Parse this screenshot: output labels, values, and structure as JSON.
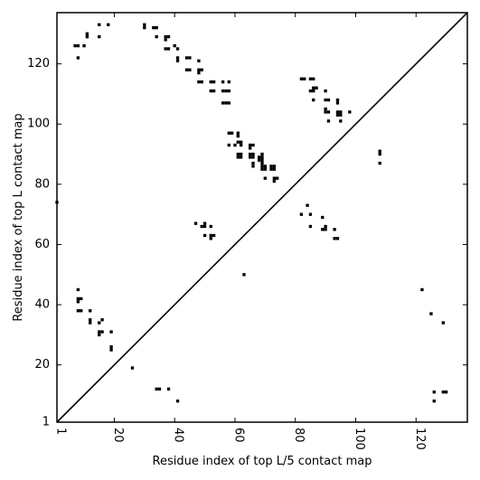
{
  "chart_data": {
    "type": "scatter",
    "xlabel": "Residue index of top L/5 contact map",
    "ylabel": "Residue index of top L contact map",
    "xlim": [
      1,
      137
    ],
    "ylim": [
      1,
      137
    ],
    "xticks": [
      1,
      20,
      40,
      60,
      80,
      100,
      120
    ],
    "yticks": [
      1,
      20,
      40,
      60,
      80,
      100,
      120
    ],
    "grid": false,
    "diagonal_line": true,
    "marker": "square",
    "colors": {
      "points": "#000000",
      "frame": "#000000",
      "background": "#ffffff"
    },
    "series": [
      {
        "name": "",
        "points": [
          [
            1,
            74
          ],
          [
            7,
            126
          ],
          [
            8,
            126
          ],
          [
            8,
            122
          ],
          [
            10,
            126
          ],
          [
            11,
            130
          ],
          [
            11,
            129
          ],
          [
            15,
            133
          ],
          [
            15,
            129
          ],
          [
            18,
            133
          ],
          [
            30,
            133
          ],
          [
            30,
            132
          ],
          [
            33,
            132
          ],
          [
            34,
            132
          ],
          [
            34,
            129
          ],
          [
            37,
            129
          ],
          [
            38,
            129
          ],
          [
            37,
            128
          ],
          [
            37,
            125
          ],
          [
            38,
            125
          ],
          [
            40,
            126
          ],
          [
            41,
            125
          ],
          [
            41,
            122
          ],
          [
            41,
            121
          ],
          [
            44,
            122
          ],
          [
            45,
            122
          ],
          [
            44,
            118
          ],
          [
            45,
            118
          ],
          [
            48,
            121
          ],
          [
            48,
            118
          ],
          [
            49,
            118
          ],
          [
            48,
            117
          ],
          [
            48,
            114
          ],
          [
            49,
            114
          ],
          [
            52,
            114
          ],
          [
            53,
            114
          ],
          [
            52,
            111
          ],
          [
            53,
            111
          ],
          [
            56,
            114
          ],
          [
            56,
            111
          ],
          [
            57,
            111
          ],
          [
            58,
            111
          ],
          [
            58,
            114
          ],
          [
            56,
            107
          ],
          [
            57,
            107
          ],
          [
            58,
            107
          ],
          [
            58,
            97
          ],
          [
            59,
            97
          ],
          [
            61,
            97
          ],
          [
            61,
            96
          ],
          [
            58,
            93
          ],
          [
            60,
            93
          ],
          [
            61,
            94
          ],
          [
            62,
            94
          ],
          [
            62,
            93
          ],
          [
            61,
            90
          ],
          [
            62,
            90
          ],
          [
            61,
            89
          ],
          [
            62,
            89
          ],
          [
            65,
            93
          ],
          [
            66,
            93
          ],
          [
            65,
            92
          ],
          [
            65,
            90
          ],
          [
            66,
            90
          ],
          [
            65,
            89
          ],
          [
            66,
            89
          ],
          [
            68,
            89
          ],
          [
            69,
            89
          ],
          [
            69,
            90
          ],
          [
            68,
            88
          ],
          [
            69,
            88
          ],
          [
            69,
            87
          ],
          [
            66,
            87
          ],
          [
            66,
            86
          ],
          [
            69,
            86
          ],
          [
            70,
            86
          ],
          [
            69,
            85
          ],
          [
            70,
            85
          ],
          [
            72,
            86
          ],
          [
            73,
            86
          ],
          [
            72,
            85
          ],
          [
            73,
            85
          ],
          [
            70,
            82
          ],
          [
            73,
            82
          ],
          [
            74,
            82
          ],
          [
            73,
            81
          ],
          [
            82,
            115
          ],
          [
            83,
            115
          ],
          [
            85,
            115
          ],
          [
            86,
            115
          ],
          [
            86,
            112
          ],
          [
            85,
            111
          ],
          [
            86,
            111
          ],
          [
            87,
            112
          ],
          [
            86,
            108
          ],
          [
            90,
            111
          ],
          [
            90,
            108
          ],
          [
            91,
            108
          ],
          [
            90,
            105
          ],
          [
            90,
            104
          ],
          [
            91,
            104
          ],
          [
            91,
            101
          ],
          [
            94,
            108
          ],
          [
            94,
            107
          ],
          [
            94,
            104
          ],
          [
            95,
            104
          ],
          [
            94,
            103
          ],
          [
            95,
            103
          ],
          [
            95,
            101
          ],
          [
            98,
            104
          ],
          [
            108,
            91
          ],
          [
            108,
            90
          ],
          [
            108,
            87
          ],
          [
            82,
            70
          ],
          [
            84,
            73
          ],
          [
            85,
            70
          ],
          [
            85,
            66
          ],
          [
            89,
            69
          ],
          [
            89,
            65
          ],
          [
            90,
            65
          ],
          [
            90,
            66
          ],
          [
            93,
            65
          ],
          [
            93,
            62
          ],
          [
            94,
            62
          ],
          [
            47,
            67
          ],
          [
            49,
            66
          ],
          [
            50,
            66
          ],
          [
            50,
            67
          ],
          [
            50,
            63
          ],
          [
            52,
            66
          ],
          [
            52,
            63
          ],
          [
            53,
            63
          ],
          [
            52,
            62
          ],
          [
            63,
            50
          ],
          [
            8,
            45
          ],
          [
            8,
            42
          ],
          [
            9,
            42
          ],
          [
            8,
            41
          ],
          [
            8,
            38
          ],
          [
            9,
            38
          ],
          [
            12,
            38
          ],
          [
            12,
            35
          ],
          [
            12,
            34
          ],
          [
            15,
            34
          ],
          [
            16,
            35
          ],
          [
            15,
            31
          ],
          [
            16,
            31
          ],
          [
            15,
            30
          ],
          [
            19,
            31
          ],
          [
            19,
            26
          ],
          [
            19,
            25
          ],
          [
            26,
            19
          ],
          [
            34,
            12
          ],
          [
            35,
            12
          ],
          [
            38,
            12
          ],
          [
            41,
            8
          ],
          [
            122,
            45
          ],
          [
            125,
            37
          ],
          [
            129,
            34
          ],
          [
            126,
            11
          ],
          [
            129,
            11
          ],
          [
            130,
            11
          ],
          [
            126,
            8
          ]
        ]
      }
    ]
  }
}
